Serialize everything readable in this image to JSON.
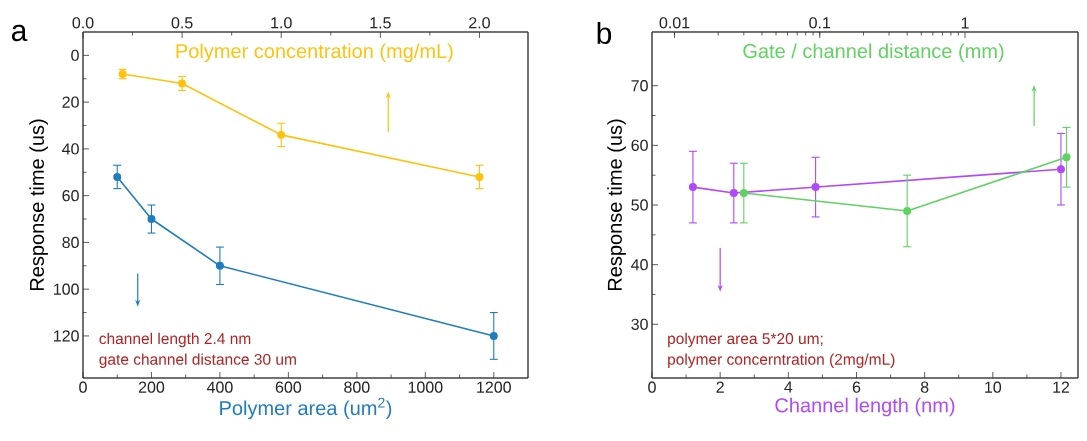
{
  "chart_data": [
    {
      "type": "line",
      "title": "a",
      "xlabel": "Polymer area (um$^{2}$)",
      "x2label": "Polymer concentration (mg/mL)",
      "ylabel": "Response time (us)",
      "annotations": [
        "channel length 2.4 nm",
        "gate channel distance 30 um"
      ],
      "xlim": [
        0,
        1300
      ],
      "xticks": [
        0,
        200,
        400,
        600,
        800,
        1000,
        1200
      ],
      "x2lim": [
        0,
        2.245
      ],
      "x2ticks": [
        {
          "value": 0,
          "label": "0.0"
        },
        0.5,
        {
          "value": 1,
          "label": "1.0"
        },
        1.5,
        {
          "value": 2,
          "label": "2.0"
        }
      ],
      "ylim": [
        138,
        -10
      ],
      "yticks": [
        0,
        20,
        40,
        60,
        80,
        100,
        120
      ],
      "marker": "circle",
      "line_style": "solid",
      "series": [
        {
          "color": "#1f7dbf",
          "x": [
            100,
            200,
            400,
            1200
          ],
          "values": [
            52,
            70,
            90,
            120
          ],
          "errors": [
            5,
            6,
            8,
            10
          ]
        },
        {
          "color": "#ffc20e",
          "axis": "x2",
          "x": [
            0.2,
            0.5,
            1.0,
            2.0
          ],
          "values": [
            8,
            12,
            34,
            52
          ],
          "errors": [
            2,
            3,
            5,
            5
          ]
        }
      ]
    },
    {
      "type": "line",
      "title": "b",
      "xlabel": "Channel length (nm)",
      "x2label": "Gate / channel distance (mm)",
      "ylabel": "Response time (us)",
      "annotations": [
        "polymer area 5*20 um;",
        "polymer concerntration (2mg/mL)"
      ],
      "xlim": [
        0,
        12.5
      ],
      "xticks": [
        0,
        2,
        4,
        6,
        8,
        10,
        12
      ],
      "x2lim": [
        0.007,
        6
      ],
      "x2ticks": [
        0.01,
        0.1,
        1
      ],
      "log": "x2",
      "ylim": [
        21,
        79
      ],
      "yticks": [
        30,
        40,
        50,
        60,
        70
      ],
      "marker": "circle",
      "line_style": "solid",
      "series": [
        {
          "color": "#b048ff",
          "x": [
            1.2,
            2.4,
            4.8,
            12
          ],
          "values": [
            53,
            52,
            53,
            56
          ],
          "errors": [
            6,
            5,
            5,
            6
          ]
        },
        {
          "color": "#5fd35f",
          "axis": "x2",
          "x": [
            0.03,
            0.4,
            5
          ],
          "values": [
            52,
            49,
            58
          ],
          "errors": [
            5,
            6,
            5
          ]
        }
      ]
    }
  ]
}
